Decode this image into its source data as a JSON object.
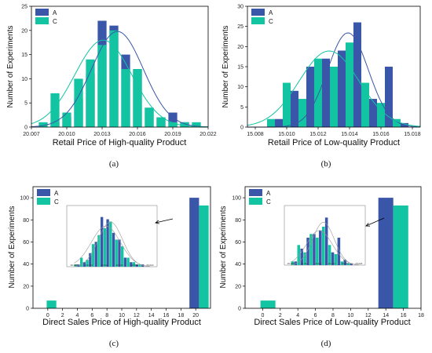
{
  "colors": {
    "A": "#3a56a8",
    "C": "#12c4a1"
  },
  "chart_data": [
    {
      "id": "a",
      "type": "bar",
      "caption": "(a)",
      "xlabel": "Retail Price of High-quality Product",
      "ylabel": "Number of Experiments",
      "xlim": [
        20.007,
        20.022
      ],
      "ylim": [
        0,
        25
      ],
      "xticks": [
        "20.007",
        "20.010",
        "20.013",
        "20.016",
        "20.019",
        "20.022"
      ],
      "yticks": [
        "0",
        "5",
        "10",
        "15",
        "20",
        "25"
      ],
      "bin_width": 0.00075,
      "legend": [
        "A",
        "C"
      ],
      "series": [
        {
          "name": "A",
          "x": [
            20.009,
            20.01,
            20.011,
            20.012,
            20.013,
            20.014,
            20.015,
            20.016,
            20.017,
            20.018,
            20.019,
            20.02
          ],
          "values": [
            1,
            2,
            6,
            11,
            22,
            21,
            15,
            12,
            4,
            2,
            3,
            1
          ],
          "fit": {
            "mean": 20.0143,
            "sd": 0.0022
          }
        },
        {
          "name": "C",
          "x": [
            20.008,
            20.009,
            20.01,
            20.011,
            20.012,
            20.013,
            20.014,
            20.015,
            20.016,
            20.017,
            20.018,
            20.019,
            20.02,
            20.021
          ],
          "values": [
            1,
            7,
            3,
            10,
            14,
            17,
            20,
            12,
            12,
            4,
            2,
            1,
            1,
            1
          ],
          "fit": {
            "mean": 20.0131,
            "sd": 0.0024
          }
        }
      ]
    },
    {
      "id": "b",
      "type": "bar",
      "caption": "(b)",
      "xlabel": "Retail Price of Low-quality Product",
      "ylabel": "Number of Experiments",
      "xlim": [
        15.0075,
        15.0185
      ],
      "ylim": [
        0,
        30
      ],
      "xticks": [
        "15.008",
        "15.010",
        "15.012",
        "15.014",
        "15.016",
        "15.018"
      ],
      "yticks": [
        "0",
        "5",
        "10",
        "15",
        "20",
        "25",
        "30"
      ],
      "bin_width": 0.0005,
      "legend": [
        "A",
        "C"
      ],
      "series": [
        {
          "name": "A",
          "x": [
            15.0095,
            15.0105,
            15.0115,
            15.0125,
            15.0135,
            15.0145,
            15.0155,
            15.0165,
            15.0175
          ],
          "values": [
            2,
            9,
            15,
            17,
            19,
            26,
            7,
            15,
            1
          ],
          "fit": {
            "mean": 15.0139,
            "sd": 0.0013
          }
        },
        {
          "name": "C",
          "x": [
            15.009,
            15.01,
            15.011,
            15.012,
            15.013,
            15.014,
            15.015,
            15.016,
            15.017
          ],
          "values": [
            2,
            11,
            7,
            17,
            15,
            21,
            11,
            6,
            2
          ],
          "fit": {
            "mean": 15.0127,
            "sd": 0.0019
          }
        }
      ]
    },
    {
      "id": "c",
      "type": "bar",
      "caption": "(c)",
      "xlabel": "Direct Sales Price of High-quality Product",
      "ylabel": "Number of Experiments",
      "xlim": [
        -2,
        22
      ],
      "ylim": [
        0,
        110
      ],
      "xticks": [
        "0",
        "2",
        "4",
        "6",
        "8",
        "10",
        "12",
        "14",
        "16",
        "18",
        "20"
      ],
      "yticks": [
        "0",
        "20",
        "40",
        "60",
        "80",
        "100"
      ],
      "bin_width": 1.3,
      "legend": [
        "A",
        "C"
      ],
      "series": [
        {
          "name": "A",
          "x": [
            19.8
          ],
          "values": [
            100
          ]
        },
        {
          "name": "C",
          "x": [
            0.5,
            21.1
          ],
          "values": [
            7,
            93
          ]
        }
      ],
      "inset": {
        "xticks": [
          "20.008",
          "20.011",
          "20.014",
          "20.017",
          "20.020",
          "20.023"
        ],
        "ylim": [
          0,
          25
        ],
        "A": [
          1,
          2,
          6,
          11,
          22,
          21,
          15,
          12,
          4,
          2,
          1,
          1
        ],
        "C": [
          1,
          4,
          3,
          10,
          14,
          17,
          20,
          12,
          9,
          4,
          2,
          1
        ]
      }
    },
    {
      "id": "d",
      "type": "bar",
      "caption": "(d)",
      "xlabel": "Direct Sales Price of Low-quality Product",
      "ylabel": "Number of Experiments",
      "xlim": [
        -2,
        18
      ],
      "ylim": [
        0,
        110
      ],
      "xticks": [
        "0",
        "2",
        "4",
        "6",
        "8",
        "10",
        "12",
        "14",
        "16",
        "18"
      ],
      "yticks": [
        "0",
        "20",
        "40",
        "60",
        "80",
        "100"
      ],
      "bin_width": 1.7,
      "legend": [
        "A",
        "C"
      ],
      "series": [
        {
          "name": "A",
          "x": [
            14.0
          ],
          "values": [
            100
          ]
        },
        {
          "name": "C",
          "x": [
            0.6,
            15.7
          ],
          "values": [
            7,
            93
          ]
        }
      ],
      "inset": {
        "xticks": [
          "15.008",
          "15.010",
          "15.012",
          "15.014",
          "15.016",
          "15.018"
        ],
        "ylim": [
          0,
          30
        ],
        "A": [
          2,
          9,
          15,
          17,
          19,
          26,
          7,
          15,
          3,
          1
        ],
        "C": [
          2,
          11,
          7,
          17,
          15,
          21,
          11,
          6,
          2,
          1
        ]
      }
    }
  ]
}
